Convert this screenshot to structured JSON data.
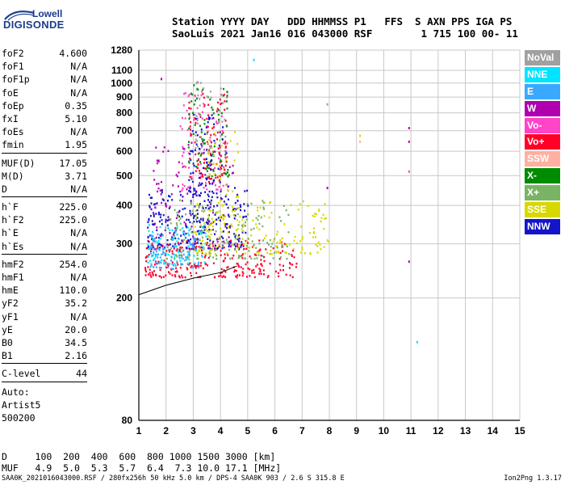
{
  "logo": {
    "line1": "Lowell",
    "line2": "DIGISONDE"
  },
  "header": {
    "line1": "Station YYYY DAY   DDD HHMMSS P1   FFS  S AXN PPS IGA PS",
    "line2": "SaoLuis 2021 Jan16 016 043000 RSF        1 715 100 00- 11"
  },
  "params": [
    {
      "k": "foF2",
      "v": "4.600"
    },
    {
      "k": "foF1",
      "v": "N/A"
    },
    {
      "k": "foF1p",
      "v": "N/A"
    },
    {
      "k": "foE",
      "v": "N/A"
    },
    {
      "k": "foEp",
      "v": "0.35"
    },
    {
      "k": "fxI",
      "v": "5.10"
    },
    {
      "k": "foEs",
      "v": "N/A"
    },
    {
      "k": "fmin",
      "v": "1.95"
    },
    {
      "sep": true
    },
    {
      "k": "MUF(D)",
      "v": "17.05"
    },
    {
      "k": "M(D)",
      "v": "3.71"
    },
    {
      "k": "D",
      "v": "N/A"
    },
    {
      "sep": true
    },
    {
      "k": "h`F",
      "v": "225.0"
    },
    {
      "k": "h`F2",
      "v": "225.0"
    },
    {
      "k": "h`E",
      "v": "N/A"
    },
    {
      "k": "h`Es",
      "v": "N/A"
    },
    {
      "sep": true
    },
    {
      "k": "hmF2",
      "v": "254.0"
    },
    {
      "k": "hmF1",
      "v": "N/A"
    },
    {
      "k": "hmE",
      "v": "110.0"
    },
    {
      "k": "yF2",
      "v": "35.2"
    },
    {
      "k": "yF1",
      "v": "N/A"
    },
    {
      "k": "yE",
      "v": "20.0"
    },
    {
      "k": "B0",
      "v": "34.5"
    },
    {
      "k": "B1",
      "v": "2.16"
    },
    {
      "sep": true
    },
    {
      "k": "C-level",
      "v": "44"
    },
    {
      "sep": true
    },
    {
      "k": "Auto:",
      "v": ""
    },
    {
      "k": "Artist5",
      "v": ""
    },
    {
      "k": "500200",
      "v": ""
    }
  ],
  "legend": [
    {
      "label": "NoVal",
      "color": "#a0a0a0"
    },
    {
      "label": "NNE",
      "color": "#00e5ff"
    },
    {
      "label": "E",
      "color": "#3aa8ff"
    },
    {
      "label": "W",
      "color": "#b000b0"
    },
    {
      "label": "Vo-",
      "color": "#ff44c8"
    },
    {
      "label": "Vo+",
      "color": "#ff0028"
    },
    {
      "label": "SSW",
      "color": "#ffb0a0"
    },
    {
      "label": "X-",
      "color": "#008c00"
    },
    {
      "label": "X+",
      "color": "#78b464"
    },
    {
      "label": "SSE",
      "color": "#d8d800"
    },
    {
      "label": "NNW",
      "color": "#1414c8"
    }
  ],
  "muf_table": {
    "d_line": "D     100  200  400  600  800 1000 1500 3000 [km]",
    "muf_line": "MUF   4.9  5.0  5.3  5.7  6.4  7.3 10.0 17.1 [MHz]"
  },
  "footer": {
    "left": "SAA0K_2021016043000.RSF / 280fx256h 50 kHz 5.0 km / DPS-4 SAA0K 903 / 2.6 S 315.8 E",
    "right": "Ion2Png 1.3.17"
  },
  "chart_data": {
    "type": "scatter",
    "xlim": [
      1,
      15
    ],
    "ylim": [
      80,
      1280
    ],
    "x_ticks": [
      1,
      2,
      3,
      4,
      5,
      6,
      7,
      8,
      9,
      10,
      11,
      12,
      13,
      14,
      15
    ],
    "y_ticks": [
      80,
      200,
      300,
      400,
      500,
      600,
      700,
      800,
      900,
      1000,
      1100,
      1280
    ],
    "grid": true,
    "y_scale": "log",
    "profile_line": [
      [
        1.0,
        205
      ],
      [
        2.0,
        220
      ],
      [
        3.0,
        232
      ],
      [
        4.0,
        242
      ],
      [
        4.6,
        254
      ]
    ],
    "echo_clusters": [
      {
        "series": "Vo+",
        "x": [
          1.2,
          6.8
        ],
        "y": [
          235,
          310
        ],
        "n": 260
      },
      {
        "series": "NNW",
        "x": [
          1.3,
          5.0
        ],
        "y": [
          290,
          460
        ],
        "n": 240
      },
      {
        "series": "SSE",
        "x": [
          3.0,
          8.0
        ],
        "y": [
          280,
          420
        ],
        "n": 180
      },
      {
        "series": "X+",
        "x": [
          2.0,
          6.5
        ],
        "y": [
          270,
          420
        ],
        "n": 150
      },
      {
        "series": "NNE",
        "x": [
          1.3,
          3.5
        ],
        "y": [
          260,
          350
        ],
        "n": 90
      },
      {
        "series": "E",
        "x": [
          1.4,
          3.2
        ],
        "y": [
          250,
          340
        ],
        "n": 90
      },
      {
        "series": "W",
        "x": [
          1.5,
          4.5
        ],
        "y": [
          290,
          650
        ],
        "n": 110
      },
      {
        "series": "Vo-",
        "x": [
          2.5,
          4.3
        ],
        "y": [
          450,
          950
        ],
        "n": 90
      },
      {
        "series": "Vo+",
        "x": [
          2.8,
          4.2
        ],
        "y": [
          480,
          950
        ],
        "n": 90
      },
      {
        "series": "X-",
        "x": [
          2.8,
          4.3
        ],
        "y": [
          500,
          1000
        ],
        "n": 80
      },
      {
        "series": "NNW",
        "x": [
          2.8,
          4.3
        ],
        "y": [
          350,
          800
        ],
        "n": 110
      },
      {
        "series": "SSE",
        "x": [
          3.5,
          4.7
        ],
        "y": [
          330,
          700
        ],
        "n": 60
      },
      {
        "series": "NoVal",
        "x": [
          3.0,
          4.2
        ],
        "y": [
          600,
          1050
        ],
        "n": 40
      }
    ],
    "isolated_points": [
      {
        "series": "NNE",
        "x": 5.2,
        "y": 1200
      },
      {
        "series": "W",
        "x": 10.9,
        "y": 720
      },
      {
        "series": "W",
        "x": 10.9,
        "y": 650
      },
      {
        "series": "Vo-",
        "x": 10.9,
        "y": 520
      },
      {
        "series": "W",
        "x": 10.9,
        "y": 265
      },
      {
        "series": "NNE",
        "x": 11.2,
        "y": 145
      },
      {
        "series": "SSE",
        "x": 9.1,
        "y": 680
      },
      {
        "series": "SSW",
        "x": 9.1,
        "y": 650
      },
      {
        "series": "W",
        "x": 1.8,
        "y": 1040
      },
      {
        "series": "NoVal",
        "x": 7.9,
        "y": 860
      },
      {
        "series": "W",
        "x": 7.9,
        "y": 460
      }
    ]
  }
}
